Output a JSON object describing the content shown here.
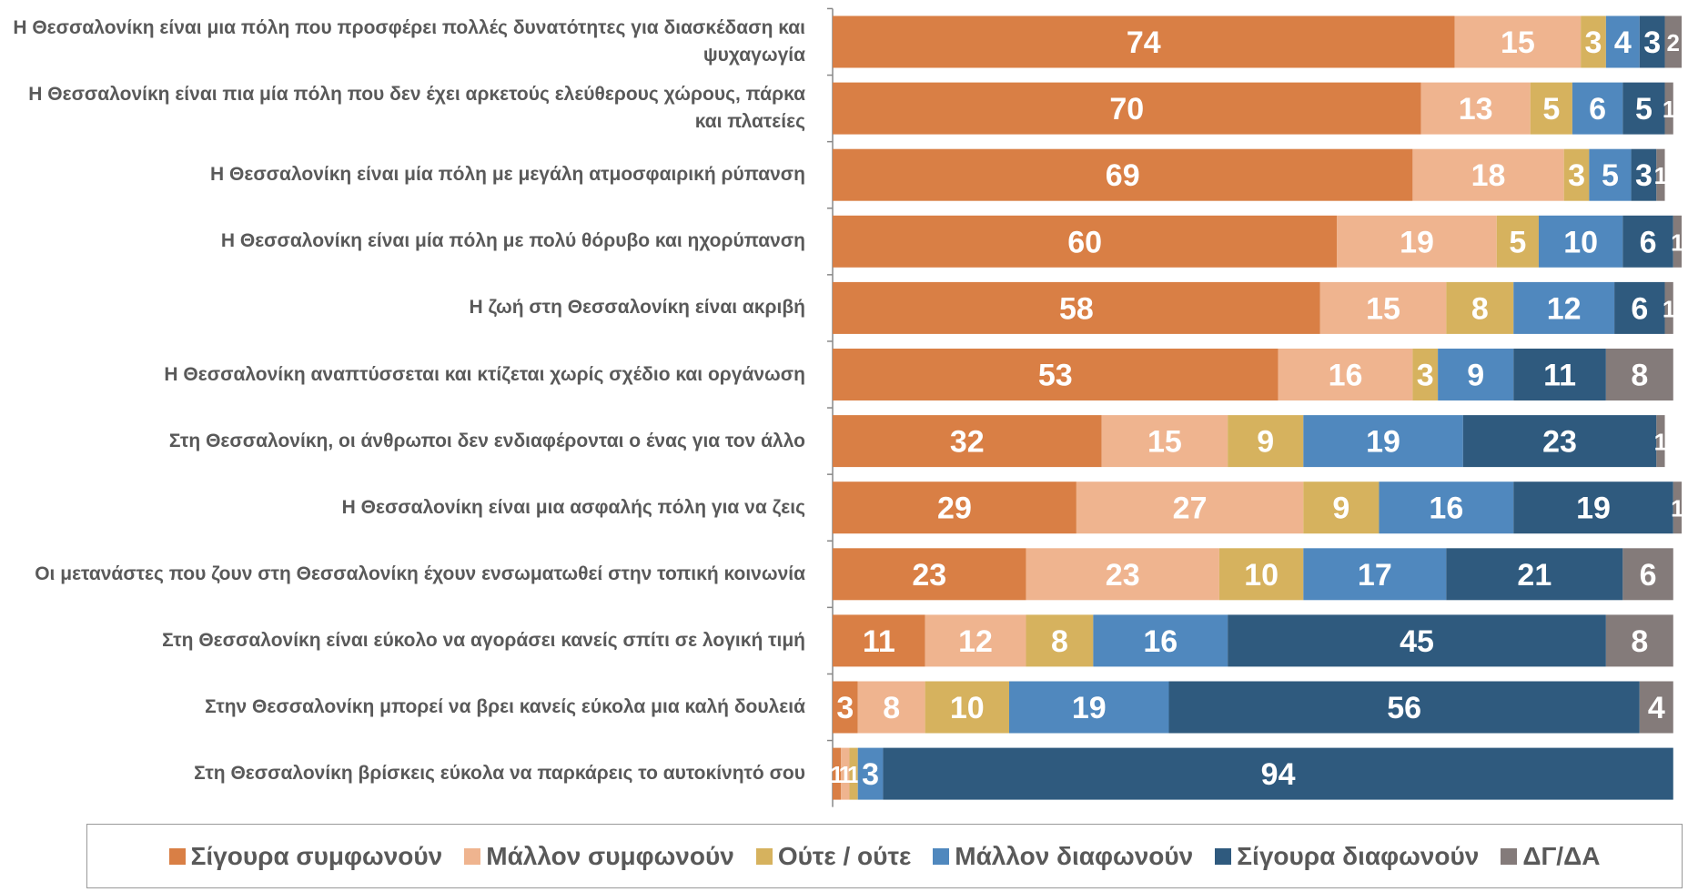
{
  "chart_data": {
    "type": "stacked-barh",
    "categories": [
      "Η Θεσσαλονίκη είναι μια πόλη που προσφέρει πολλές δυνατότητες για διασκέδαση και ψυχαγωγία",
      "Η Θεσσαλονίκη είναι πια μία πόλη που δεν έχει αρκετούς ελεύθερους χώρους, πάρκα και πλατείες",
      "Η Θεσσαλονίκη είναι μία πόλη με μεγάλη ατμοσφαιρική ρύπανση",
      "Η Θεσσαλονίκη είναι μία πόλη με πολύ θόρυβο και ηχορύπανση",
      "Η ζωή στη Θεσσαλονίκη είναι ακριβή",
      "Η Θεσσαλονίκη αναπτύσσεται και κτίζεται χωρίς σχέδιο και οργάνωση",
      "Στη Θεσσαλονίκη, οι άνθρωποι δεν ενδιαφέρονται ο ένας για τον άλλο",
      "Η Θεσσαλονίκη είναι μια ασφαλής πόλη για να ζεις",
      "Οι μετανάστες που ζουν στη Θεσσαλονίκη έχουν ενσωματωθεί στην τοπική κοινωνία",
      "Στη Θεσσαλονίκη είναι εύκολο να αγοράσει κανείς σπίτι σε λογική τιμή",
      "Στην Θεσσαλονίκη μπορεί να βρει κανείς εύκολα μια καλή δουλειά",
      "Στη Θεσσαλονίκη βρίσκεις εύκολα να παρκάρεις το αυτοκίνητό σου"
    ],
    "series": [
      {
        "name": "Σίγουρα συμφωνούν",
        "color": "#d97f45",
        "values": [
          74,
          70,
          69,
          60,
          58,
          53,
          32,
          29,
          23,
          11,
          3,
          1
        ]
      },
      {
        "name": "Μάλλον συμφωνούν",
        "color": "#efb48f",
        "values": [
          15,
          13,
          18,
          19,
          15,
          16,
          15,
          27,
          23,
          12,
          8,
          1
        ]
      },
      {
        "name": "Ούτε / ούτε",
        "color": "#d6b25e",
        "values": [
          3,
          5,
          3,
          5,
          8,
          3,
          9,
          9,
          10,
          8,
          10,
          1
        ]
      },
      {
        "name": "Μάλλον διαφωνούν",
        "color": "#5088be",
        "values": [
          4,
          6,
          5,
          10,
          12,
          9,
          19,
          16,
          17,
          16,
          19,
          3
        ]
      },
      {
        "name": "Σίγουρα διαφωνούν",
        "color": "#2f5a7e",
        "values": [
          3,
          5,
          3,
          6,
          6,
          11,
          23,
          19,
          21,
          45,
          56,
          94
        ]
      },
      {
        "name": "ΔΓ/ΔΑ",
        "color": "#847b7a",
        "values": [
          2,
          1,
          1,
          1,
          1,
          8,
          1,
          1,
          6,
          8,
          4,
          null
        ]
      }
    ],
    "legend": "bottom"
  }
}
